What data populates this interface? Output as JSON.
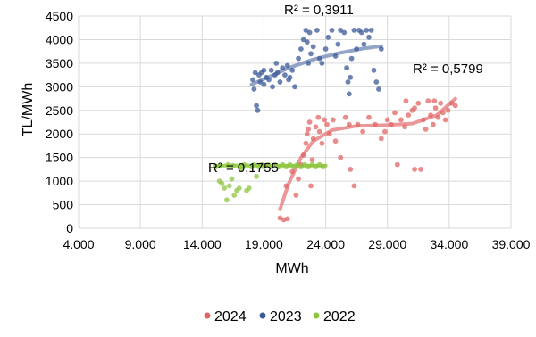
{
  "chart_data": {
    "type": "scatter",
    "xlabel": "MWh",
    "ylabel": "TL/MWh",
    "xlim": [
      4000,
      39000
    ],
    "ylim": [
      0,
      4500
    ],
    "x_ticks": [
      4000,
      9000,
      14000,
      19000,
      24000,
      29000,
      34000,
      39000
    ],
    "x_tick_labels": [
      "4.000",
      "9.000",
      "14.000",
      "19.000",
      "24.000",
      "29.000",
      "34.000",
      "39.000"
    ],
    "y_ticks": [
      0,
      500,
      1000,
      1500,
      2000,
      2500,
      3000,
      3500,
      4000,
      4500
    ],
    "y_tick_labels": [
      "0",
      "500",
      "1000",
      "1500",
      "2000",
      "2500",
      "3000",
      "3500",
      "4000",
      "4500"
    ],
    "grid": true,
    "legend_position": "bottom",
    "annotations": [
      {
        "text": "R² = 0,3911",
        "series": "2023"
      },
      {
        "text": "R² = 0,5799",
        "series": "2024"
      },
      {
        "text": "R² = 0,1755",
        "series": "2022"
      }
    ],
    "series": [
      {
        "name": "2024",
        "color": "#e06666",
        "trend_color": "#e88585",
        "trendline": [
          [
            20300,
            400
          ],
          [
            21000,
            950
          ],
          [
            22000,
            1500
          ],
          [
            23000,
            1850
          ],
          [
            24500,
            2080
          ],
          [
            26500,
            2170
          ],
          [
            29000,
            2190
          ],
          [
            31000,
            2220
          ],
          [
            33000,
            2400
          ],
          [
            34500,
            2750
          ]
        ],
        "points": [
          [
            20300,
            220
          ],
          [
            20600,
            180
          ],
          [
            20900,
            200
          ],
          [
            20800,
            900
          ],
          [
            21300,
            1200
          ],
          [
            21600,
            700
          ],
          [
            21800,
            1050
          ],
          [
            22000,
            1350
          ],
          [
            22200,
            1550
          ],
          [
            22400,
            1800
          ],
          [
            22500,
            2000
          ],
          [
            22600,
            2100
          ],
          [
            22700,
            2250
          ],
          [
            22800,
            900
          ],
          [
            22900,
            1450
          ],
          [
            23000,
            1900
          ],
          [
            23200,
            2150
          ],
          [
            23400,
            2350
          ],
          [
            23500,
            2050
          ],
          [
            23700,
            1800
          ],
          [
            23900,
            2300
          ],
          [
            24100,
            2200
          ],
          [
            24300,
            2000
          ],
          [
            24600,
            2300
          ],
          [
            24800,
            1850
          ],
          [
            25200,
            1500
          ],
          [
            25600,
            2350
          ],
          [
            25900,
            2200
          ],
          [
            26000,
            1250
          ],
          [
            26300,
            900
          ],
          [
            26600,
            2200
          ],
          [
            27000,
            2050
          ],
          [
            27500,
            2350
          ],
          [
            28000,
            2200
          ],
          [
            28500,
            1900
          ],
          [
            28800,
            2050
          ],
          [
            29000,
            2300
          ],
          [
            29300,
            2200
          ],
          [
            29600,
            2450
          ],
          [
            29800,
            1350
          ],
          [
            30100,
            2300
          ],
          [
            30400,
            2150
          ],
          [
            30700,
            2400
          ],
          [
            31000,
            2500
          ],
          [
            31200,
            1250
          ],
          [
            31500,
            2650
          ],
          [
            31700,
            1250
          ],
          [
            31900,
            2300
          ],
          [
            32100,
            2100
          ],
          [
            32300,
            2700
          ],
          [
            32500,
            2400
          ],
          [
            32700,
            2200
          ],
          [
            32900,
            2550
          ],
          [
            33100,
            2350
          ],
          [
            33300,
            2650
          ],
          [
            33500,
            2450
          ],
          [
            33700,
            2300
          ],
          [
            33900,
            2500
          ],
          [
            34200,
            2650
          ],
          [
            34500,
            2600
          ],
          [
            32800,
            2700
          ],
          [
            31200,
            2550
          ],
          [
            30500,
            2700
          ]
        ]
      },
      {
        "name": "2023",
        "color": "#3b5998",
        "trend_color": "#7f95bd",
        "trendline": [
          [
            18000,
            3050
          ],
          [
            19500,
            3220
          ],
          [
            21000,
            3400
          ],
          [
            23000,
            3580
          ],
          [
            25000,
            3710
          ],
          [
            27000,
            3810
          ],
          [
            28500,
            3860
          ]
        ],
        "points": [
          [
            18100,
            3150
          ],
          [
            18200,
            2950
          ],
          [
            18300,
            3300
          ],
          [
            18400,
            2600
          ],
          [
            18500,
            2500
          ],
          [
            18600,
            3250
          ],
          [
            18700,
            3100
          ],
          [
            18800,
            3300
          ],
          [
            19000,
            3050
          ],
          [
            19200,
            3200
          ],
          [
            19400,
            3150
          ],
          [
            19600,
            3350
          ],
          [
            19700,
            3000
          ],
          [
            19900,
            3250
          ],
          [
            20100,
            3300
          ],
          [
            20300,
            3100
          ],
          [
            20500,
            3400
          ],
          [
            20700,
            3250
          ],
          [
            20900,
            3450
          ],
          [
            21100,
            3200
          ],
          [
            21300,
            3350
          ],
          [
            21500,
            3000
          ],
          [
            21800,
            3600
          ],
          [
            22000,
            3800
          ],
          [
            22200,
            4000
          ],
          [
            22400,
            4200
          ],
          [
            22500,
            3950
          ],
          [
            22700,
            4150
          ],
          [
            22800,
            3700
          ],
          [
            23000,
            3850
          ],
          [
            23300,
            4200
          ],
          [
            23500,
            3600
          ],
          [
            23700,
            3500
          ],
          [
            24000,
            3800
          ],
          [
            24200,
            4050
          ],
          [
            24500,
            4200
          ],
          [
            24800,
            3650
          ],
          [
            25000,
            3900
          ],
          [
            25200,
            4200
          ],
          [
            25500,
            4150
          ],
          [
            25700,
            3400
          ],
          [
            25800,
            3100
          ],
          [
            25900,
            2850
          ],
          [
            26000,
            3200
          ],
          [
            26100,
            3600
          ],
          [
            26300,
            4200
          ],
          [
            26500,
            3800
          ],
          [
            26700,
            4200
          ],
          [
            26900,
            4150
          ],
          [
            27100,
            3900
          ],
          [
            27300,
            4200
          ],
          [
            27500,
            4050
          ],
          [
            27700,
            4200
          ],
          [
            27900,
            3350
          ],
          [
            28100,
            3100
          ],
          [
            28300,
            2950
          ],
          [
            28500,
            3800
          ],
          [
            20000,
            3500
          ],
          [
            19000,
            3350
          ],
          [
            21000,
            3150
          ],
          [
            22600,
            3500
          ]
        ]
      },
      {
        "name": "2022",
        "color": "#8dc63f",
        "trend_color": "#8dc63f",
        "trendline": [
          [
            15000,
            1330
          ],
          [
            19500,
            1330
          ],
          [
            24000,
            1330
          ]
        ],
        "points": [
          [
            15100,
            1300
          ],
          [
            15400,
            1000
          ],
          [
            15600,
            950
          ],
          [
            15800,
            850
          ],
          [
            16000,
            600
          ],
          [
            16200,
            900
          ],
          [
            16400,
            1050
          ],
          [
            16600,
            700
          ],
          [
            16800,
            800
          ],
          [
            17000,
            850
          ],
          [
            17200,
            1250
          ],
          [
            17400,
            1350
          ],
          [
            17600,
            800
          ],
          [
            17800,
            850
          ],
          [
            18000,
            1300
          ],
          [
            18200,
            1350
          ],
          [
            18400,
            1100
          ],
          [
            18600,
            1300
          ],
          [
            18800,
            1350
          ],
          [
            19000,
            1300
          ],
          [
            19300,
            1350
          ],
          [
            19600,
            1300
          ],
          [
            19900,
            1350
          ],
          [
            20200,
            1300
          ],
          [
            20500,
            1350
          ],
          [
            20800,
            1300
          ],
          [
            21100,
            1350
          ],
          [
            21400,
            1300
          ],
          [
            21700,
            1350
          ],
          [
            22000,
            1300
          ],
          [
            22300,
            1350
          ],
          [
            22600,
            1300
          ],
          [
            22900,
            1350
          ],
          [
            23200,
            1300
          ],
          [
            23500,
            1350
          ],
          [
            23800,
            1300
          ],
          [
            16100,
            1350
          ],
          [
            16500,
            1330
          ],
          [
            17100,
            1300
          ],
          [
            15500,
            1330
          ]
        ]
      }
    ]
  }
}
